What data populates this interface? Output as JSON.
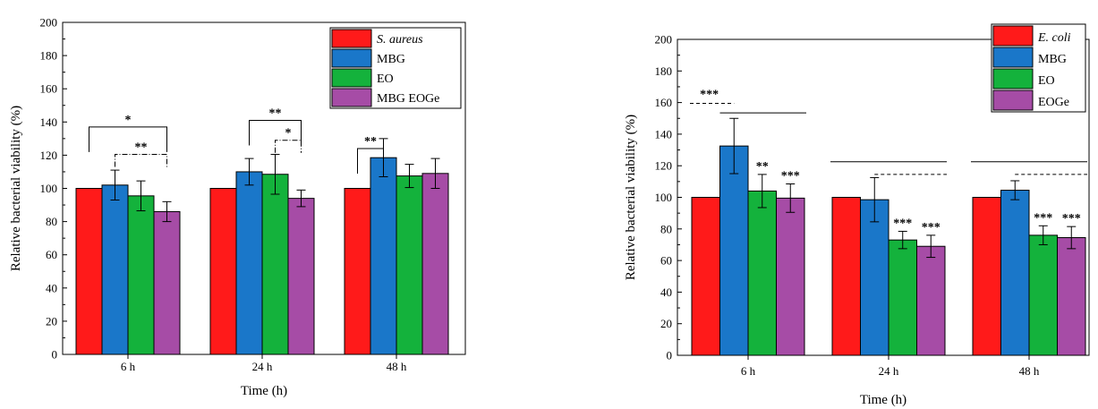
{
  "chart_data": [
    {
      "type": "bar",
      "xlabel": "Time (h)",
      "ylabel": "Relative bacterial viability (%)",
      "ylim": [
        0,
        200
      ],
      "yticks": [
        0,
        20,
        40,
        60,
        80,
        100,
        120,
        140,
        160,
        180,
        200
      ],
      "categories": [
        "6 h",
        "24 h",
        "48 h"
      ],
      "legend_position": "top-right",
      "series": [
        {
          "name": "S. aureus",
          "italic": true,
          "color": "#ff1a1a",
          "values": [
            100,
            100,
            100
          ],
          "errors": [
            0,
            0,
            0
          ]
        },
        {
          "name": "MBG",
          "italic": false,
          "color": "#1a77c9",
          "values": [
            102,
            110,
            118.5
          ],
          "errors": [
            9,
            8,
            11.5
          ]
        },
        {
          "name": "EO",
          "italic": false,
          "color": "#14b23c",
          "values": [
            95.5,
            108.5,
            107.5
          ],
          "errors": [
            9,
            12,
            7
          ]
        },
        {
          "name": "MBG EOGe",
          "italic": false,
          "color": "#a64ca6",
          "values": [
            86,
            94,
            109
          ],
          "errors": [
            6,
            5,
            9
          ]
        }
      ],
      "significance_brackets": [
        {
          "label": "*",
          "group": 0,
          "from": 0,
          "to": 3,
          "y": 137,
          "style": "solid"
        },
        {
          "label": "**",
          "group": 0,
          "from": 1,
          "to": 3,
          "y": 120.5,
          "style": "dashdot"
        },
        {
          "label": "**",
          "group": 1,
          "from": 1,
          "to": 3,
          "y": 141,
          "style": "solid"
        },
        {
          "label": "*",
          "group": 1,
          "from": 2,
          "to": 3,
          "y": 129,
          "style": "dashdot"
        },
        {
          "label": "**",
          "group": 2,
          "from": 0,
          "to": 1,
          "y": 124,
          "style": "solid"
        }
      ],
      "bar_annotations": []
    },
    {
      "type": "bar",
      "xlabel": "Time (h)",
      "ylabel": "Relative bacterial viability (%)",
      "ylim": [
        0,
        200
      ],
      "yticks": [
        0,
        20,
        40,
        60,
        80,
        100,
        120,
        140,
        160,
        180,
        200
      ],
      "categories": [
        "6 h",
        "24 h",
        "48 h"
      ],
      "legend_position": "top-right",
      "series": [
        {
          "name": "E. coli",
          "italic": true,
          "color": "#ff1a1a",
          "values": [
            100,
            100,
            100
          ],
          "errors": [
            0,
            0,
            0
          ]
        },
        {
          "name": "MBG",
          "italic": false,
          "color": "#1a77c9",
          "values": [
            132.5,
            98.5,
            104.5
          ],
          "errors": [
            17.5,
            14,
            6
          ]
        },
        {
          "name": "EO",
          "italic": false,
          "color": "#14b23c",
          "values": [
            104,
            73,
            76
          ],
          "errors": [
            10.5,
            5.5,
            6
          ]
        },
        {
          "name": "EOGe",
          "italic": false,
          "color": "#a64ca6",
          "values": [
            99.5,
            69,
            74.5
          ],
          "errors": [
            9,
            7,
            7
          ]
        }
      ],
      "reference_lines": [
        {
          "group": 0,
          "x_from": 0,
          "x_to": 0.5,
          "y": 159.5,
          "style": "dashed",
          "label": "***"
        },
        {
          "group": 0,
          "x_from": 1,
          "x_to": 3,
          "y": 153.5,
          "style": "solid",
          "label": ""
        },
        {
          "group": 1,
          "x_from": 0,
          "x_to": 3,
          "y": 122.5,
          "style": "solid",
          "label": ""
        },
        {
          "group": 1,
          "x_from": 1.5,
          "x_to": 3,
          "y": 114.5,
          "style": "dashed",
          "label": ""
        },
        {
          "group": 2,
          "x_from": 0,
          "x_to": 3,
          "y": 122.5,
          "style": "solid",
          "label": ""
        },
        {
          "group": 2,
          "x_from": 1.5,
          "x_to": 3,
          "y": 114.5,
          "style": "dashed",
          "label": ""
        }
      ],
      "bar_annotations": [
        {
          "group": 0,
          "series": 2,
          "label": "**"
        },
        {
          "group": 0,
          "series": 3,
          "label": "***"
        },
        {
          "group": 1,
          "series": 2,
          "label": "***"
        },
        {
          "group": 1,
          "series": 3,
          "label": "***"
        },
        {
          "group": 2,
          "series": 2,
          "label": "***"
        },
        {
          "group": 2,
          "series": 3,
          "label": "***"
        }
      ]
    }
  ]
}
